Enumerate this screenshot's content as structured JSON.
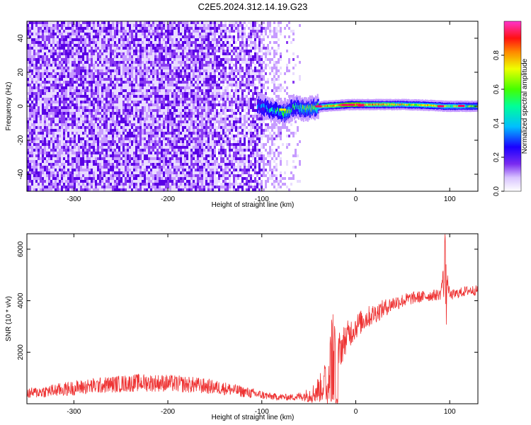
{
  "figure_title": "C2E5.2024.312.14.19.G23",
  "colors": {
    "snr_line": "#ee3333",
    "spectrogram_background": "#ffffff",
    "colormap": [
      "#ffffff",
      "#e9dcff",
      "#c79cff",
      "#8a3cf2",
      "#5a00e6",
      "#2200ff",
      "#0066ff",
      "#00ccff",
      "#00ff99",
      "#33ff00",
      "#ccff00",
      "#ffee00",
      "#ff8800",
      "#ff2200",
      "#ff0066",
      "#ff33cc"
    ]
  },
  "chart_data": [
    {
      "type": "heatmap",
      "title": "",
      "xlabel": "Height of straight line (km)",
      "ylabel": "Frequency (Hz)",
      "xlim": [
        -350,
        130
      ],
      "ylim": [
        -50,
        50
      ],
      "xticks": [
        -300,
        -200,
        -100,
        0,
        100
      ],
      "yticks": [
        -40,
        -20,
        0,
        20,
        40
      ],
      "colorbar": {
        "label": "Normalized spectral amplitude",
        "range": [
          0,
          1
        ],
        "ticks": [
          "0.0",
          "0.2",
          "0.4",
          "0.6",
          "0.8"
        ]
      },
      "features": {
        "noise_region": {
          "x_range": [
            -350,
            -60
          ],
          "freq_range": [
            -50,
            50
          ],
          "amplitude": 0.1
        },
        "signal_onset_km": -105,
        "carrier_trace": [
          {
            "x": -105,
            "freq": 1,
            "amplitude": 0.35
          },
          {
            "x": -95,
            "freq": -1,
            "amplitude": 0.45
          },
          {
            "x": -85,
            "freq": -3,
            "amplitude": 0.5
          },
          {
            "x": -75,
            "freq": -4,
            "amplitude": 0.55
          },
          {
            "x": -65,
            "freq": 0,
            "amplitude": 0.5
          },
          {
            "x": -55,
            "freq": -2,
            "amplitude": 0.55
          },
          {
            "x": -45,
            "freq": -1,
            "amplitude": 0.6
          },
          {
            "x": -35,
            "freq": 0,
            "amplitude": 0.7
          },
          {
            "x": -20,
            "freq": 0.5,
            "amplitude": 0.8
          },
          {
            "x": -5,
            "freq": 1,
            "amplitude": 0.85
          },
          {
            "x": 20,
            "freq": 1,
            "amplitude": 0.75
          },
          {
            "x": 50,
            "freq": 1,
            "amplitude": 0.7
          },
          {
            "x": 80,
            "freq": 0.5,
            "amplitude": 0.7
          },
          {
            "x": 95,
            "freq": 0,
            "amplitude": 0.65
          },
          {
            "x": 130,
            "freq": 0,
            "amplitude": 0.6
          }
        ]
      }
    },
    {
      "type": "line",
      "title": "",
      "xlabel": "Height of straight line (km)",
      "ylabel": "SNR (10 * v/v)",
      "xlim": [
        -350,
        130
      ],
      "ylim": [
        0,
        6600
      ],
      "xticks": [
        -300,
        -200,
        -100,
        0,
        100
      ],
      "yticks": [
        2000,
        4000,
        6000
      ],
      "series": [
        {
          "x": [
            -350,
            -320,
            -290,
            -260,
            -230,
            -200,
            -170,
            -140,
            -110,
            -90,
            -70,
            -55,
            -45,
            -35,
            -28,
            -25,
            -20,
            -15,
            -10,
            0,
            10,
            20,
            30,
            40,
            50,
            60,
            70,
            80,
            90,
            95,
            100,
            110,
            120,
            130
          ],
          "y": [
            400,
            520,
            650,
            750,
            820,
            800,
            720,
            600,
            400,
            280,
            250,
            300,
            400,
            700,
            1300,
            2800,
            2000,
            2200,
            2600,
            3000,
            3300,
            3500,
            3700,
            3900,
            4000,
            4100,
            4150,
            4200,
            4250,
            5400,
            4200,
            4300,
            4400,
            4400
          ],
          "noise": [
            200,
            260,
            300,
            330,
            350,
            340,
            320,
            260,
            200,
            140,
            120,
            200,
            400,
            650,
            900,
            1000,
            800,
            700,
            600,
            500,
            450,
            400,
            350,
            300,
            280,
            250,
            230,
            220,
            220,
            400,
            200,
            200,
            200,
            200
          ]
        }
      ],
      "features": {
        "dropout": {
          "x": -20,
          "y": 0
        },
        "spike": {
          "x": 95,
          "y": 6600
        }
      }
    }
  ]
}
